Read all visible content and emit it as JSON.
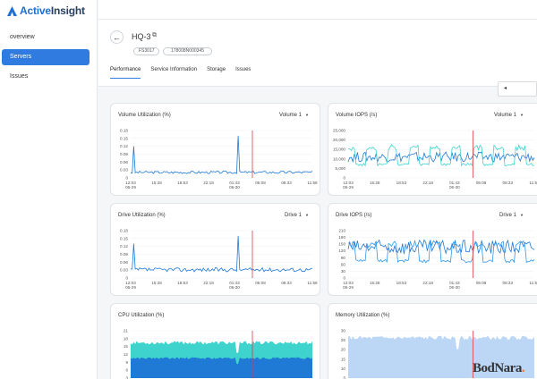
{
  "app": {
    "logo_active": "Active",
    "logo_insight": "Insight"
  },
  "sidebar": {
    "items": [
      {
        "label": "overview",
        "active": false
      },
      {
        "label": "Servers",
        "active": true
      },
      {
        "label": "Issues",
        "active": false
      }
    ]
  },
  "header": {
    "title": "HQ-3",
    "tags": [
      "FS3017",
      "178008N000345"
    ],
    "tabs": [
      {
        "label": "Performance",
        "active": true
      },
      {
        "label": "Service Information",
        "active": false
      },
      {
        "label": "Storage",
        "active": false
      },
      {
        "label": "Issues",
        "active": false
      }
    ]
  },
  "colors": {
    "accent": "#2f7be0",
    "series_blue": "#1f7ad6",
    "series_teal": "#3ed3cc",
    "marker": "#e0393e"
  },
  "x_ticks": [
    [
      "12:03",
      "06-29"
    ],
    [
      "15:28",
      ""
    ],
    [
      "18:53",
      ""
    ],
    [
      "22:18",
      ""
    ],
    [
      "01:43",
      "06-30"
    ],
    [
      "05:08",
      ""
    ],
    [
      "08:33",
      ""
    ],
    [
      "11:58",
      ""
    ]
  ],
  "charts": [
    {
      "title": "Volume Utilization (%)",
      "dropdown": "Volume 1",
      "chart_data": {
        "type": "line",
        "y_ticks": [
          "0.18",
          "0.15",
          "0.12",
          "0.09",
          "0.06",
          "0.03",
          "0"
        ],
        "ylim": [
          0,
          0.18
        ],
        "series": [
          {
            "color": "#1f7ad6",
            "baseline": 0.02,
            "spikes": [
              {
                "x": 0.02,
                "value": 0.12
              },
              {
                "x": 0.59,
                "value": 0.16
              }
            ]
          }
        ],
        "marker_x": 0.67
      }
    },
    {
      "title": "Volume IOPS (/s)",
      "dropdown": "Volume 1",
      "chart_data": {
        "type": "line",
        "y_ticks": [
          "25,000",
          "20,000",
          "15,000",
          "10,000",
          "5,000",
          "0"
        ],
        "ylim": [
          0,
          25000
        ],
        "series": [
          {
            "color": "#1f7ad6",
            "baseline": 10500
          },
          {
            "color": "#3ed3cc",
            "baseline": 7000,
            "peak": 16000
          }
        ],
        "marker_x": 0.67
      }
    },
    {
      "title": "Drive Utilization (%)",
      "dropdown": "Drive 1",
      "chart_data": {
        "type": "line",
        "y_ticks": [
          "0.18",
          "0.15",
          "0.12",
          "0.09",
          "0.06",
          "0.03",
          "0"
        ],
        "ylim": [
          0,
          0.18
        ],
        "series": [
          {
            "color": "#1f7ad6",
            "baseline": 0.03,
            "spikes": [
              {
                "x": 0.02,
                "value": 0.13
              },
              {
                "x": 0.59,
                "value": 0.16
              }
            ]
          }
        ],
        "marker_x": 0.67
      }
    },
    {
      "title": "Drive IOPS (/s)",
      "dropdown": "Drive 1",
      "chart_data": {
        "type": "line",
        "y_ticks": [
          "210",
          "180",
          "150",
          "120",
          "90",
          "60",
          "30",
          "0"
        ],
        "ylim": [
          0,
          210
        ],
        "series": [
          {
            "color": "#1f7ad6",
            "baseline": 130
          },
          {
            "color": "#2f98e8",
            "baseline": 75,
            "peak": 150
          }
        ],
        "marker_x": 0.67
      }
    },
    {
      "title": "CPU Utilization (%)",
      "dropdown": "",
      "chart_data": {
        "type": "area",
        "y_ticks": [
          "21",
          "18",
          "15",
          "12",
          "9",
          "6",
          "3"
        ],
        "ylim": [
          0,
          21
        ],
        "series": [
          {
            "color": "#1f7ad6",
            "value": 9
          },
          {
            "color": "#3ed3cc",
            "value": 16
          }
        ],
        "marker_x": 0.67
      }
    },
    {
      "title": "Memory Utilization (%)",
      "dropdown": "",
      "chart_data": {
        "type": "area",
        "y_ticks": [
          "30",
          "25",
          "20",
          "15",
          "10",
          "5"
        ],
        "ylim": [
          0,
          30
        ],
        "series": [
          {
            "color": "#bcd6f5",
            "value": 26
          }
        ],
        "marker_x": 0.67
      }
    }
  ],
  "watermark": {
    "text": "BodNara"
  }
}
